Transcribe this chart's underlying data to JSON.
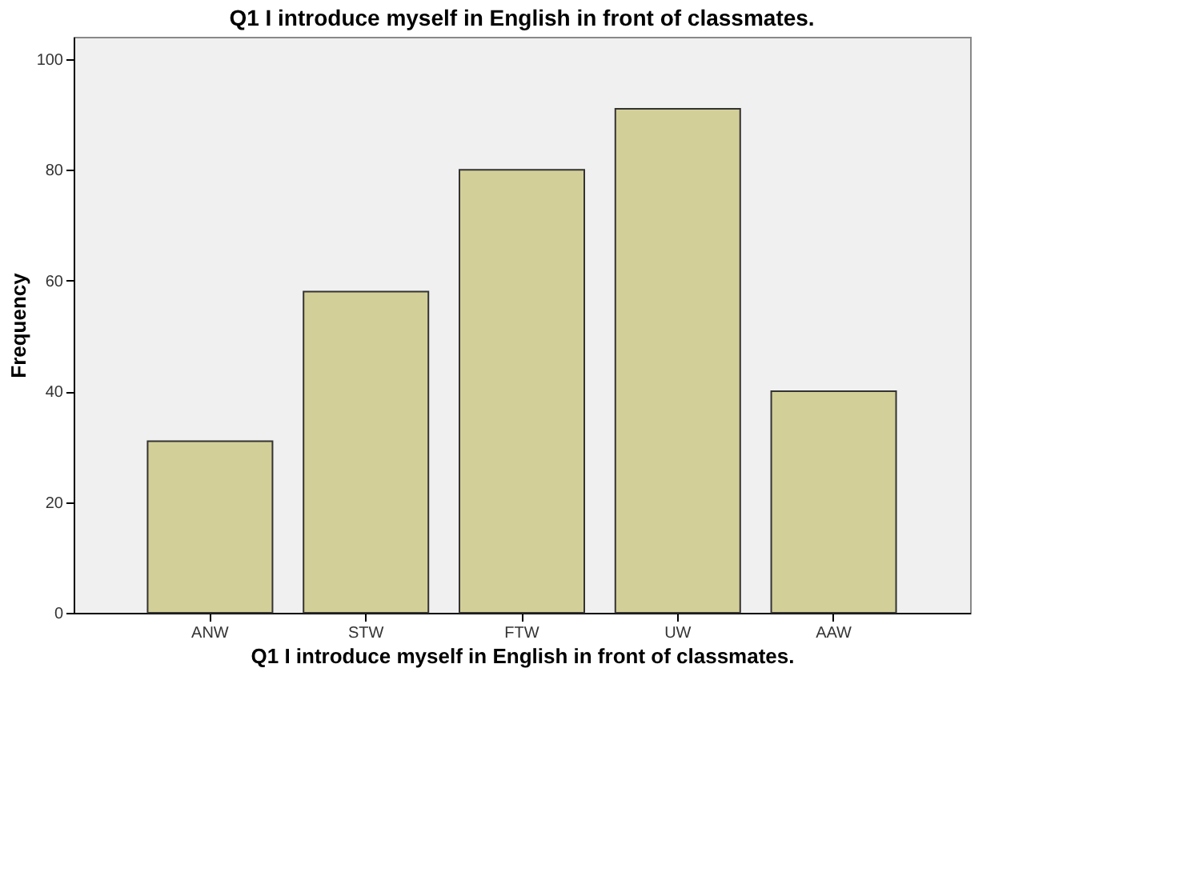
{
  "chart_data": {
    "type": "bar",
    "title": "Q1 I introduce myself in English in front of classmates.",
    "xlabel": "Q1 I introduce myself in English in front of classmates.",
    "ylabel": "Frequency",
    "categories": [
      "ANW",
      "STW",
      "FTW",
      "UW",
      "AAW"
    ],
    "values": [
      31,
      58,
      80,
      91,
      40
    ],
    "color": "#d3cf98",
    "ylim": [
      0,
      104
    ],
    "yticks": [
      0,
      20,
      40,
      60,
      80,
      100
    ],
    "grid": false
  }
}
